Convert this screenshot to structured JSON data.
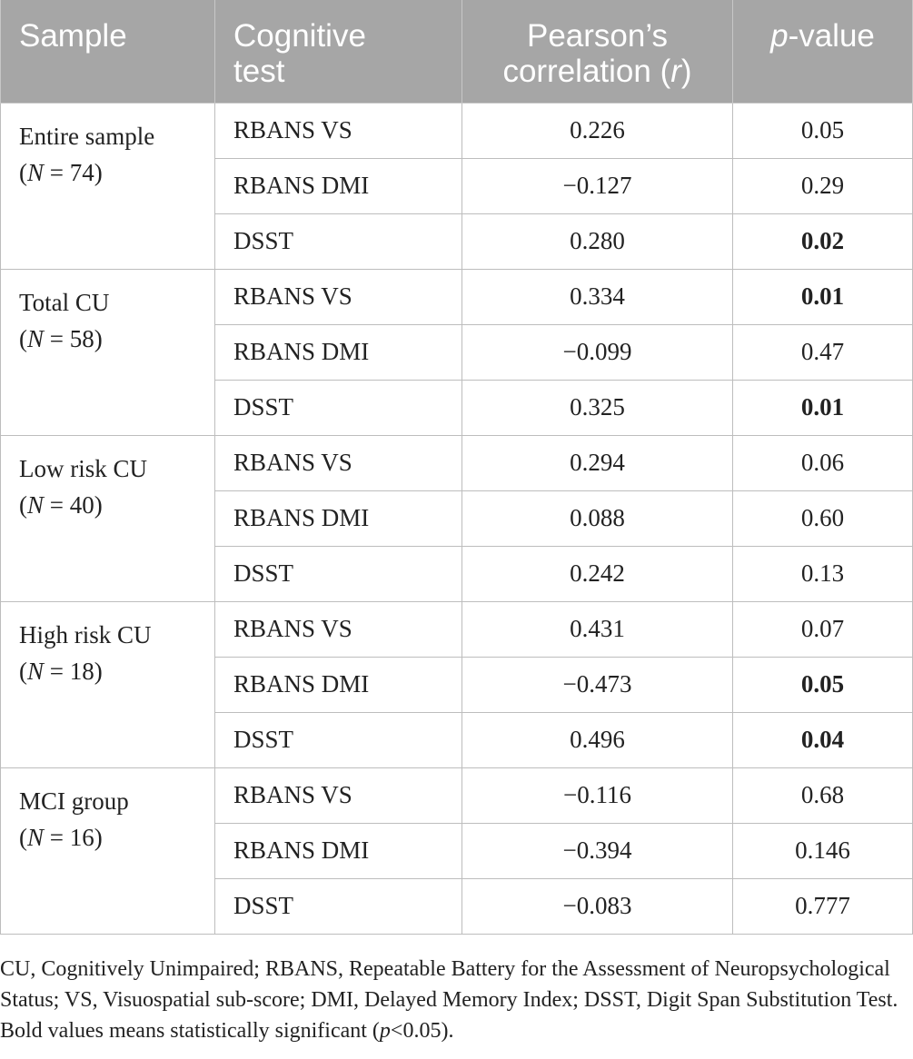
{
  "header": {
    "col_sample": "Sample",
    "col_test": "Cognitive test",
    "col_corr": "Pearson’s correlation (r)",
    "col_corr_prefix": "Pearson’s",
    "col_corr_mid": "correlation (",
    "col_corr_r": "r",
    "col_corr_suffix": ")",
    "col_p": "p-value",
    "col_p_italic": "p",
    "col_p_rest": "-value"
  },
  "groups": [
    {
      "sample": "Entire sample",
      "n_prefix": "(",
      "n_letter": "N",
      "n_rest": " = 74)",
      "rows": [
        {
          "test": "RBANS VS",
          "r": "0.226",
          "p": "0.05",
          "significant": false
        },
        {
          "test": "RBANS DMI",
          "r": "−0.127",
          "p": "0.29",
          "significant": false
        },
        {
          "test": "DSST",
          "r": "0.280",
          "p": "0.02",
          "significant": true
        }
      ]
    },
    {
      "sample": "Total CU",
      "n_prefix": "(",
      "n_letter": "N",
      "n_rest": " = 58)",
      "rows": [
        {
          "test": "RBANS VS",
          "r": "0.334",
          "p": "0.01",
          "significant": true
        },
        {
          "test": "RBANS DMI",
          "r": "−0.099",
          "p": "0.47",
          "significant": false
        },
        {
          "test": "DSST",
          "r": "0.325",
          "p": "0.01",
          "significant": true
        }
      ]
    },
    {
      "sample": "Low risk CU",
      "n_prefix": "(",
      "n_letter": "N",
      "n_rest": " = 40)",
      "rows": [
        {
          "test": "RBANS VS",
          "r": "0.294",
          "p": "0.06",
          "significant": false
        },
        {
          "test": "RBANS DMI",
          "r": "0.088",
          "p": "0.60",
          "significant": false
        },
        {
          "test": "DSST",
          "r": "0.242",
          "p": "0.13",
          "significant": false
        }
      ]
    },
    {
      "sample": "High risk CU",
      "n_prefix": "(",
      "n_letter": "N",
      "n_rest": " = 18)",
      "rows": [
        {
          "test": "RBANS VS",
          "r": "0.431",
          "p": "0.07",
          "significant": false
        },
        {
          "test": "RBANS DMI",
          "r": "−0.473",
          "p": "0.05",
          "significant": true
        },
        {
          "test": "DSST",
          "r": "0.496",
          "p": "0.04",
          "significant": true
        }
      ]
    },
    {
      "sample": "MCI group",
      "n_prefix": "(",
      "n_letter": "N",
      "n_rest": " = 16)",
      "rows": [
        {
          "test": "RBANS VS",
          "r": "−0.116",
          "p": "0.68",
          "significant": false
        },
        {
          "test": "RBANS DMI",
          "r": "−0.394",
          "p": "0.146",
          "significant": false
        },
        {
          "test": "DSST",
          "r": "−0.083",
          "p": "0.777",
          "significant": false
        }
      ]
    }
  ],
  "footnote": {
    "text": "CU, Cognitively Unimpaired; RBANS, Repeatable Battery for the Assessment of Neuropsychological Status; VS, Visuospatial sub-score; DMI, Delayed Memory Index; DSST, Digit Span Substitution Test. Bold values means statistically significant (",
    "p_italic": "p",
    "suffix": "<0.05)."
  },
  "colors": {
    "header_bg": "#a6a6a6",
    "header_text": "#ffffff",
    "body_text": "#222222",
    "border": "#bdbdbd"
  }
}
